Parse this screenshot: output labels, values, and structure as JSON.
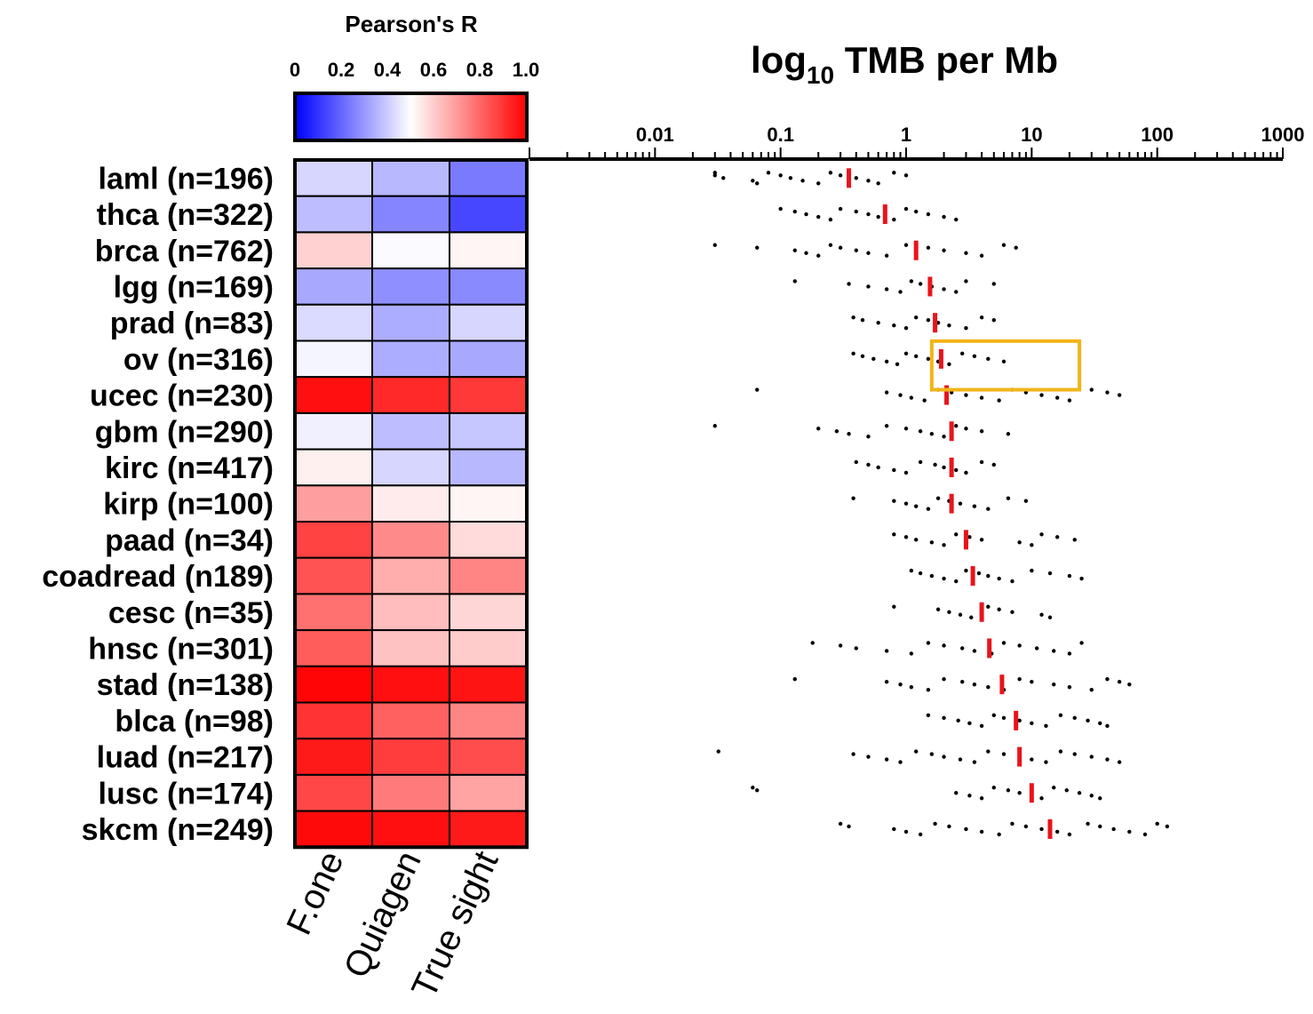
{
  "chart_data": [
    {
      "type": "heatmap",
      "title": "Pearson's R",
      "colorbar": {
        "ticks": [
          "0",
          "0.2",
          "0.4",
          "0.6",
          "0.8",
          "1.0"
        ],
        "range": [
          0,
          1
        ],
        "colors": [
          "#0000ff",
          "#ffffff",
          "#ff0000"
        ]
      },
      "rows": [
        "laml (n=196)",
        "thca (n=322)",
        "brca (n=762)",
        "lgg (n=169)",
        "prad (n=83)",
        "ov (n=316)",
        "ucec (n=230)",
        "gbm (n=290)",
        "kirc (n=417)",
        "kirp (n=100)",
        "paad (n=34)",
        "coadread (n189)",
        "cesc (n=35)",
        "hnsc (n=301)",
        "stad (n=138)",
        "blca (n=98)",
        "luad (n=217)",
        "lusc (n=174)",
        "skcm (n=249)"
      ],
      "columns": [
        "F.one",
        "Quiagen",
        "True sight"
      ],
      "values": [
        [
          0.42,
          0.36,
          0.24
        ],
        [
          0.37,
          0.26,
          0.14
        ],
        [
          0.59,
          0.49,
          0.52
        ],
        [
          0.33,
          0.28,
          0.27
        ],
        [
          0.43,
          0.34,
          0.42
        ],
        [
          0.48,
          0.34,
          0.33
        ],
        [
          0.97,
          0.92,
          0.89
        ],
        [
          0.47,
          0.37,
          0.39
        ],
        [
          0.53,
          0.42,
          0.36
        ],
        [
          0.69,
          0.54,
          0.52
        ],
        [
          0.87,
          0.73,
          0.57
        ],
        [
          0.84,
          0.66,
          0.74
        ],
        [
          0.78,
          0.63,
          0.58
        ],
        [
          0.82,
          0.62,
          0.6
        ],
        [
          0.99,
          0.97,
          0.96
        ],
        [
          0.9,
          0.81,
          0.74
        ],
        [
          0.95,
          0.88,
          0.85
        ],
        [
          0.86,
          0.76,
          0.68
        ],
        [
          0.98,
          0.97,
          0.95
        ]
      ]
    },
    {
      "type": "scatter",
      "title": "log10 TMB per Mb",
      "title_main": "log",
      "title_sub": "10",
      "title_rest": " TMB per Mb",
      "xscale": "log",
      "xlim": [
        0.001,
        1000
      ],
      "xticks": [
        "0.01",
        "0.1",
        "1",
        "10",
        "100",
        "1000"
      ],
      "categories": [
        "laml (n=196)",
        "thca (n=322)",
        "brca (n=762)",
        "lgg (n=169)",
        "prad (n=83)",
        "ov (n=316)",
        "ucec (n=230)",
        "gbm (n=290)",
        "kirc (n=417)",
        "kirp (n=100)",
        "paad (n=34)",
        "coadread (n189)",
        "cesc (n=35)",
        "hnsc (n=301)",
        "stad (n=138)",
        "blca (n=98)",
        "luad (n=217)",
        "lusc (n=174)",
        "skcm (n=249)"
      ],
      "median_color": "#e8141b",
      "highlight_box_color": "#f2b418",
      "distributions": [
        {
          "min": 0.03,
          "max": 1.1,
          "median": 0.35,
          "points": [
            0.03,
            0.03,
            0.035,
            0.06,
            0.065,
            0.08,
            0.1,
            0.12,
            0.15,
            0.2,
            0.25,
            0.3,
            0.4,
            0.5,
            0.6,
            0.8,
            1.0
          ]
        },
        {
          "min": 0.1,
          "max": 2.8,
          "median": 0.68,
          "points": [
            0.1,
            0.13,
            0.16,
            0.2,
            0.25,
            0.3,
            0.4,
            0.5,
            0.6,
            0.8,
            1.0,
            1.2,
            1.5,
            2.0,
            2.5
          ]
        },
        {
          "min": 0.03,
          "max": 8.0,
          "median": 1.2,
          "points": [
            0.03,
            0.065,
            0.13,
            0.16,
            0.2,
            0.25,
            0.3,
            0.4,
            0.5,
            0.7,
            1.0,
            1.5,
            2.0,
            3.0,
            4.0,
            6.0,
            7.5
          ]
        },
        {
          "min": 0.13,
          "max": 5.0,
          "median": 1.55,
          "points": [
            0.13,
            0.35,
            0.5,
            0.7,
            0.9,
            1.1,
            1.3,
            1.6,
            2.0,
            2.5,
            3.0,
            5.0
          ]
        },
        {
          "min": 0.38,
          "max": 5.0,
          "median": 1.7,
          "points": [
            0.38,
            0.45,
            0.6,
            0.8,
            1.0,
            1.2,
            1.5,
            1.8,
            2.2,
            3.0,
            4.0,
            5.0
          ]
        },
        {
          "min": 0.38,
          "max": 6.5,
          "median": 1.9,
          "points": [
            0.38,
            0.45,
            0.55,
            0.7,
            0.85,
            1.0,
            1.2,
            1.5,
            1.8,
            2.2,
            2.8,
            3.5,
            4.5,
            6.0
          ]
        },
        {
          "min": 0.065,
          "max": 50.0,
          "median": 2.1,
          "points": [
            0.065,
            0.7,
            0.9,
            1.1,
            1.4,
            1.8,
            2.3,
            3.0,
            4.0,
            5.5,
            7.0,
            9.0,
            12.0,
            16.0,
            20.0,
            30.0,
            40.0,
            50.0
          ]
        },
        {
          "min": 0.03,
          "max": 6.5,
          "median": 2.3,
          "points": [
            0.03,
            0.2,
            0.28,
            0.35,
            0.5,
            0.7,
            1.0,
            1.3,
            1.6,
            2.0,
            2.5,
            3.0,
            4.0,
            6.5
          ]
        },
        {
          "min": 0.4,
          "max": 5.5,
          "median": 2.3,
          "points": [
            0.4,
            0.5,
            0.6,
            0.8,
            1.0,
            1.3,
            1.7,
            2.0,
            2.5,
            3.0,
            4.0,
            5.0
          ]
        },
        {
          "min": 0.38,
          "max": 9.0,
          "median": 2.3,
          "points": [
            0.38,
            0.8,
            1.0,
            1.2,
            1.5,
            1.8,
            2.2,
            2.7,
            3.5,
            4.5,
            6.5,
            9.0
          ]
        },
        {
          "min": 0.8,
          "max": 22.0,
          "median": 3.0,
          "points": [
            0.8,
            1.0,
            1.2,
            1.6,
            2.0,
            2.5,
            3.2,
            4.0,
            8.0,
            10.0,
            12.0,
            16.0,
            22.0
          ]
        },
        {
          "min": 1.1,
          "max": 25.0,
          "median": 3.4,
          "points": [
            1.1,
            1.3,
            1.6,
            2.0,
            2.5,
            3.0,
            3.8,
            4.5,
            5.5,
            7.0,
            10.0,
            14.0,
            20.0,
            25.0
          ]
        },
        {
          "min": 0.8,
          "max": 14.0,
          "median": 4.0,
          "points": [
            0.8,
            1.8,
            2.2,
            2.7,
            3.3,
            4.5,
            5.5,
            7.0,
            12.0,
            14.0
          ]
        },
        {
          "min": 0.18,
          "max": 25.0,
          "median": 4.6,
          "points": [
            0.18,
            0.3,
            0.4,
            0.7,
            1.1,
            1.5,
            2.0,
            2.8,
            3.5,
            4.8,
            6.0,
            8.0,
            11.0,
            15.0,
            20.0,
            25.0
          ]
        },
        {
          "min": 0.13,
          "max": 60.0,
          "median": 5.8,
          "points": [
            0.13,
            0.7,
            0.9,
            1.1,
            1.5,
            2.0,
            2.8,
            3.5,
            4.5,
            6.0,
            8.0,
            10.0,
            15.0,
            20.0,
            30.0,
            40.0,
            50.0,
            60.0
          ]
        },
        {
          "min": 1.5,
          "max": 40.0,
          "median": 7.5,
          "points": [
            1.5,
            2.0,
            2.6,
            3.2,
            4.0,
            5.0,
            6.0,
            8.0,
            10.0,
            13.0,
            17.0,
            22.0,
            28.0,
            35.0,
            40.0
          ]
        },
        {
          "min": 0.032,
          "max": 50.0,
          "median": 8.0,
          "points": [
            0.032,
            0.38,
            0.5,
            0.7,
            0.9,
            1.2,
            1.6,
            2.0,
            2.7,
            3.5,
            4.5,
            6.0,
            8.0,
            10.0,
            13.0,
            17.0,
            22.0,
            30.0,
            40.0,
            50.0
          ]
        },
        {
          "min": 0.065,
          "max": 35.0,
          "median": 10.0,
          "points": [
            0.06,
            0.065,
            2.5,
            3.2,
            4.0,
            5.0,
            6.5,
            8.0,
            10.0,
            12.0,
            15.0,
            19.0,
            24.0,
            30.0,
            35.0
          ]
        },
        {
          "min": 0.3,
          "max": 120.0,
          "median": 14.0,
          "points": [
            0.3,
            0.35,
            0.8,
            1.0,
            1.3,
            1.7,
            2.2,
            3.0,
            4.0,
            5.5,
            7.0,
            9.0,
            12.0,
            16.0,
            20.0,
            28.0,
            35.0,
            45.0,
            60.0,
            80.0,
            100.0,
            120.0
          ]
        }
      ],
      "highlight_box": {
        "x_range": [
          1.6,
          24.0
        ],
        "rows": [
          "ov (n=316)",
          "ucec (n=230)"
        ]
      }
    }
  ]
}
